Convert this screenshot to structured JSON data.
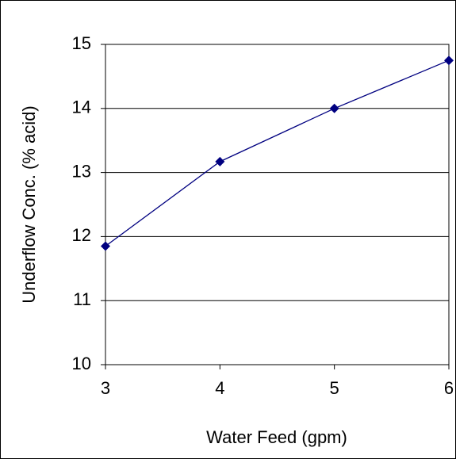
{
  "chart_data": {
    "type": "line",
    "x_label": "Water Feed (gpm)",
    "y_label": "Underflow Conc. (% acid)",
    "x": [
      3,
      4,
      5,
      6
    ],
    "series": [
      {
        "color": "#000080",
        "marker": "diamond",
        "values": [
          11.85,
          13.17,
          14.0,
          14.75
        ]
      }
    ],
    "xlim": [
      3,
      6
    ],
    "xticks": [
      3,
      4,
      5,
      6
    ],
    "ylim": [
      10,
      15
    ],
    "yticks": [
      10,
      11,
      12,
      13,
      14,
      15
    ],
    "grid": true
  }
}
